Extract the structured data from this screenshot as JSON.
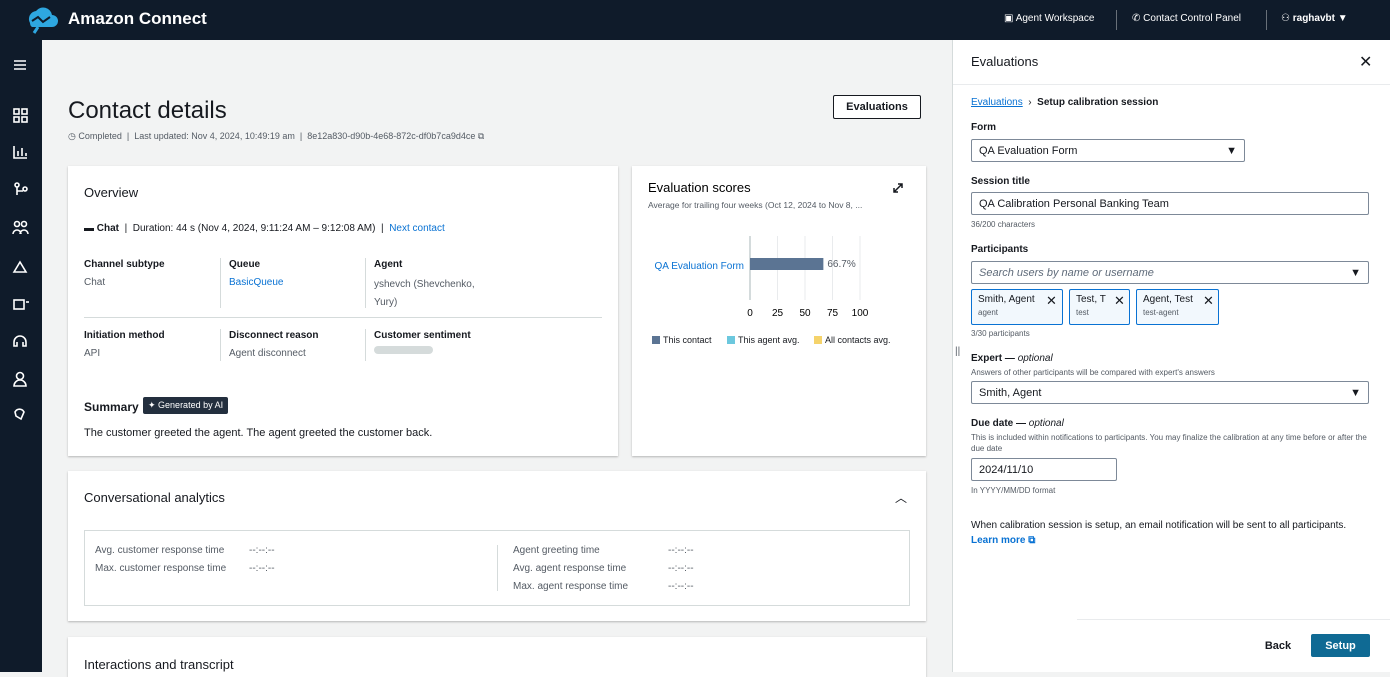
{
  "header": {
    "brand": "Amazon Connect",
    "links": [
      "Agent Workspace",
      "Contact Control Panel"
    ],
    "user": "raghavbt"
  },
  "page": {
    "title": "Contact details",
    "evaluations_button": "Evaluations",
    "status": "Completed",
    "last_updated": "Last updated: Nov 4, 2024, 10:49:19 am",
    "contact_id": "8e12a830-d90b-4e68-872c-df0b7ca9d4ce"
  },
  "overview": {
    "title": "Overview",
    "channel": "Chat",
    "duration": "Duration: 44 s (Nov 4, 2024, 9:11:24 AM – 9:12:08 AM)",
    "next_contact": "Next contact",
    "fields": [
      {
        "label": "Channel subtype",
        "value": "Chat"
      },
      {
        "label": "Queue",
        "value": "BasicQueue"
      },
      {
        "label": "Agent",
        "value": "yshevch (Shevchenko, Yury)"
      },
      {
        "label": "Initiation method",
        "value": "API"
      },
      {
        "label": "Disconnect reason",
        "value": "Agent disconnect"
      },
      {
        "label": "Customer sentiment"
      }
    ],
    "summary_title": "Summary",
    "ai_badge": "Generated by AI",
    "summary": "The customer greeted the agent. The agent greeted the customer back."
  },
  "chart_data": {
    "type": "bar",
    "orientation": "horizontal",
    "title": "Evaluation scores",
    "subtitle": "Average for trailing four weeks (Oct 12, 2024 to Nov 8, ...",
    "categories": [
      "QA Evaluation Form"
    ],
    "series": [
      {
        "name": "This contact",
        "color": "#5b7493",
        "values": [
          66.7
        ],
        "value_labels": [
          "66.7%"
        ]
      },
      {
        "name": "This agent avg.",
        "color": "#6cc8de",
        "values": [
          null
        ]
      },
      {
        "name": "All contacts avg.",
        "color": "#f5d36b",
        "values": [
          null
        ]
      }
    ],
    "xlim": [
      0,
      100
    ],
    "xticks": [
      0,
      25,
      50,
      75,
      100
    ],
    "grid": true
  },
  "analytics": {
    "title": "Conversational analytics",
    "left": [
      {
        "label": "Avg. customer response time",
        "value": "--:--:--"
      },
      {
        "label": "Max. customer response time",
        "value": "--:--:--"
      }
    ],
    "right": [
      {
        "label": "Agent greeting time",
        "value": "--:--:--"
      },
      {
        "label": "Avg. agent response time",
        "value": "--:--:--"
      },
      {
        "label": "Max. agent response time",
        "value": "--:--:--"
      }
    ]
  },
  "interactions": {
    "title": "Interactions and transcript"
  },
  "panel": {
    "title": "Evaluations",
    "breadcrumb": [
      "Evaluations",
      "Setup calibration session"
    ],
    "form_label": "Form",
    "form_value": "QA Evaluation Form",
    "session_label": "Session title",
    "session_value": "QA Calibration Personal Banking Team",
    "session_counter": "36/200 characters",
    "participants_label": "Participants",
    "participants_placeholder": "Search users by name or username",
    "tokens": [
      {
        "name": "Smith, Agent",
        "sub": "agent"
      },
      {
        "name": "Test, T",
        "sub": "test"
      },
      {
        "name": "Agent, Test",
        "sub": "test-agent"
      }
    ],
    "participants_count": "3/30 participants",
    "expert_label": "Expert —",
    "expert_optional": "optional",
    "expert_desc": "Answers of other participants will be compared with expert's answers",
    "expert_value": "Smith, Agent",
    "due_label": "Due date —",
    "due_optional": "optional",
    "due_desc": "This is included within notifications to participants. You may finalize the calibration at any time before or after the due date",
    "due_value": "2024/11/10",
    "due_hint": "In YYYY/MM/DD format",
    "notice": "When calibration session is setup, an email notification will be sent to all participants.",
    "learn_more": "Learn more",
    "back": "Back",
    "setup": "Setup"
  }
}
